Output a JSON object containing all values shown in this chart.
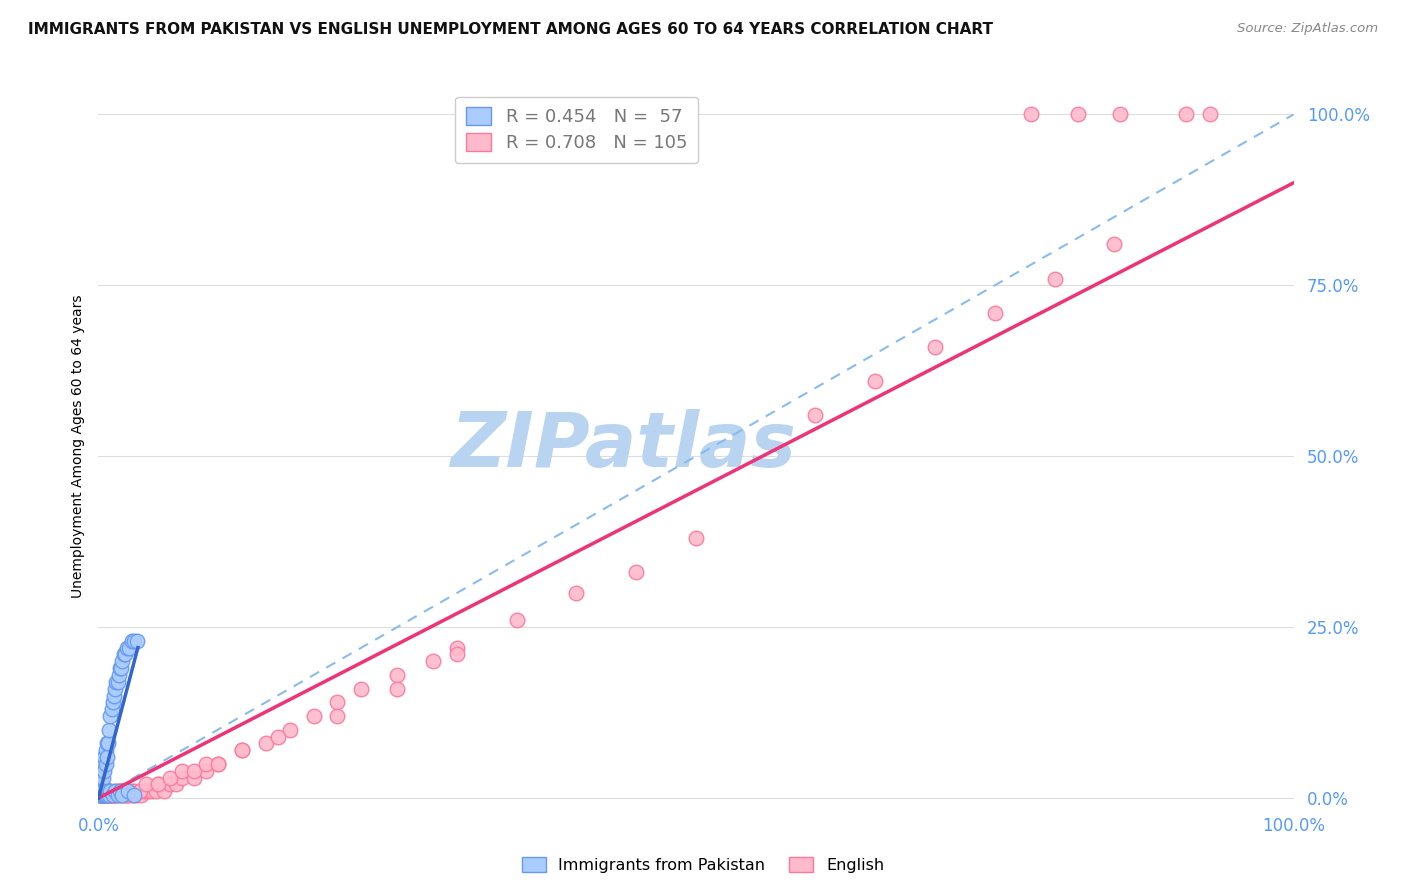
{
  "title": "IMMIGRANTS FROM PAKISTAN VS ENGLISH UNEMPLOYMENT AMONG AGES 60 TO 64 YEARS CORRELATION CHART",
  "source": "Source: ZipAtlas.com",
  "ylabel": "Unemployment Among Ages 60 to 64 years",
  "ytick_labels": [
    "0.0%",
    "25.0%",
    "50.0%",
    "75.0%",
    "100.0%"
  ],
  "ytick_values": [
    0.0,
    0.25,
    0.5,
    0.75,
    1.0
  ],
  "xlim": [
    0.0,
    1.0
  ],
  "ylim": [
    -0.02,
    1.05
  ],
  "watermark": "ZIPatlas",
  "pakistan_scatter": {
    "face_color": "#aaccff",
    "edge_color": "#6699ee",
    "x": [
      0.001,
      0.001,
      0.001,
      0.002,
      0.002,
      0.002,
      0.003,
      0.003,
      0.004,
      0.004,
      0.005,
      0.005,
      0.006,
      0.006,
      0.007,
      0.007,
      0.008,
      0.009,
      0.01,
      0.011,
      0.012,
      0.013,
      0.014,
      0.015,
      0.016,
      0.017,
      0.018,
      0.019,
      0.02,
      0.021,
      0.022,
      0.024,
      0.026,
      0.028,
      0.03,
      0.032,
      0.001,
      0.001,
      0.002,
      0.002,
      0.003,
      0.003,
      0.004,
      0.004,
      0.005,
      0.006,
      0.007,
      0.008,
      0.009,
      0.01,
      0.012,
      0.014,
      0.016,
      0.018,
      0.02,
      0.025,
      0.03
    ],
    "y": [
      0.005,
      0.01,
      0.02,
      0.01,
      0.02,
      0.03,
      0.02,
      0.04,
      0.03,
      0.05,
      0.04,
      0.06,
      0.05,
      0.07,
      0.06,
      0.08,
      0.08,
      0.1,
      0.12,
      0.13,
      0.14,
      0.15,
      0.16,
      0.17,
      0.17,
      0.18,
      0.19,
      0.19,
      0.2,
      0.21,
      0.21,
      0.22,
      0.22,
      0.23,
      0.23,
      0.23,
      0.005,
      0.005,
      0.005,
      0.01,
      0.005,
      0.01,
      0.005,
      0.01,
      0.005,
      0.005,
      0.005,
      0.01,
      0.005,
      0.01,
      0.005,
      0.01,
      0.005,
      0.01,
      0.005,
      0.01,
      0.005
    ]
  },
  "pakistan_line": {
    "color": "#3366cc",
    "x": [
      0.0,
      0.033
    ],
    "y": [
      0.0,
      0.22
    ]
  },
  "english_scatter": {
    "face_color": "#ffbbcc",
    "edge_color": "#ff7799",
    "x": [
      0.001,
      0.001,
      0.001,
      0.002,
      0.002,
      0.002,
      0.003,
      0.003,
      0.004,
      0.004,
      0.005,
      0.005,
      0.006,
      0.006,
      0.007,
      0.007,
      0.008,
      0.008,
      0.009,
      0.009,
      0.01,
      0.01,
      0.011,
      0.012,
      0.013,
      0.014,
      0.015,
      0.016,
      0.017,
      0.018,
      0.019,
      0.02,
      0.021,
      0.022,
      0.023,
      0.024,
      0.025,
      0.026,
      0.027,
      0.028,
      0.03,
      0.032,
      0.034,
      0.036,
      0.038,
      0.04,
      0.042,
      0.045,
      0.048,
      0.05,
      0.055,
      0.06,
      0.065,
      0.07,
      0.08,
      0.09,
      0.1,
      0.12,
      0.14,
      0.16,
      0.18,
      0.2,
      0.22,
      0.25,
      0.28,
      0.3,
      0.35,
      0.4,
      0.45,
      0.5,
      0.001,
      0.002,
      0.003,
      0.004,
      0.005,
      0.006,
      0.007,
      0.008,
      0.009,
      0.01,
      0.012,
      0.015,
      0.018,
      0.022,
      0.026,
      0.03,
      0.035,
      0.04,
      0.05,
      0.06,
      0.07,
      0.08,
      0.09,
      0.1,
      0.12,
      0.15,
      0.2,
      0.25,
      0.3,
      0.6,
      0.65,
      0.7,
      0.75,
      0.8,
      0.85
    ],
    "y": [
      0.005,
      0.01,
      0.005,
      0.005,
      0.01,
      0.005,
      0.005,
      0.01,
      0.005,
      0.01,
      0.005,
      0.01,
      0.005,
      0.01,
      0.005,
      0.01,
      0.005,
      0.01,
      0.005,
      0.01,
      0.005,
      0.01,
      0.005,
      0.005,
      0.005,
      0.01,
      0.005,
      0.01,
      0.005,
      0.01,
      0.005,
      0.01,
      0.005,
      0.005,
      0.01,
      0.005,
      0.005,
      0.01,
      0.005,
      0.01,
      0.005,
      0.005,
      0.01,
      0.005,
      0.01,
      0.01,
      0.01,
      0.01,
      0.01,
      0.02,
      0.01,
      0.02,
      0.02,
      0.03,
      0.03,
      0.04,
      0.05,
      0.07,
      0.08,
      0.1,
      0.12,
      0.14,
      0.16,
      0.18,
      0.2,
      0.22,
      0.26,
      0.3,
      0.33,
      0.38,
      0.005,
      0.005,
      0.005,
      0.005,
      0.005,
      0.005,
      0.005,
      0.005,
      0.005,
      0.005,
      0.005,
      0.005,
      0.01,
      0.01,
      0.01,
      0.01,
      0.01,
      0.02,
      0.02,
      0.03,
      0.04,
      0.04,
      0.05,
      0.05,
      0.07,
      0.09,
      0.12,
      0.16,
      0.21,
      0.56,
      0.61,
      0.66,
      0.71,
      0.76,
      0.81
    ]
  },
  "english_line": {
    "color": "#ee3377",
    "x": [
      0.0,
      1.0
    ],
    "y": [
      0.0,
      0.9
    ]
  },
  "dashed_line": {
    "color": "#88bbee",
    "x": [
      0.0,
      1.0
    ],
    "y": [
      0.0,
      1.0
    ]
  },
  "top_right_dots": {
    "color": "#ffbbcc",
    "edge_color": "#ff7799",
    "x": [
      0.78,
      0.82,
      0.855,
      0.91,
      0.93
    ],
    "y": [
      1.0,
      1.0,
      1.0,
      1.0,
      1.0
    ]
  },
  "grid_color": "#dddddd",
  "background_color": "#ffffff",
  "title_fontsize": 11,
  "tick_label_color": "#5599ff",
  "watermark_color": "#b8d4f0",
  "watermark_fontsize": 55,
  "legend1_label_R": "R = ",
  "legend1_R_val": "0.454",
  "legend1_label_N": "  N = ",
  "legend1_N_val": " 57",
  "legend2_label_R": "R = ",
  "legend2_R_val": "0.708",
  "legend2_label_N": "  N = ",
  "legend2_N_val": "105"
}
